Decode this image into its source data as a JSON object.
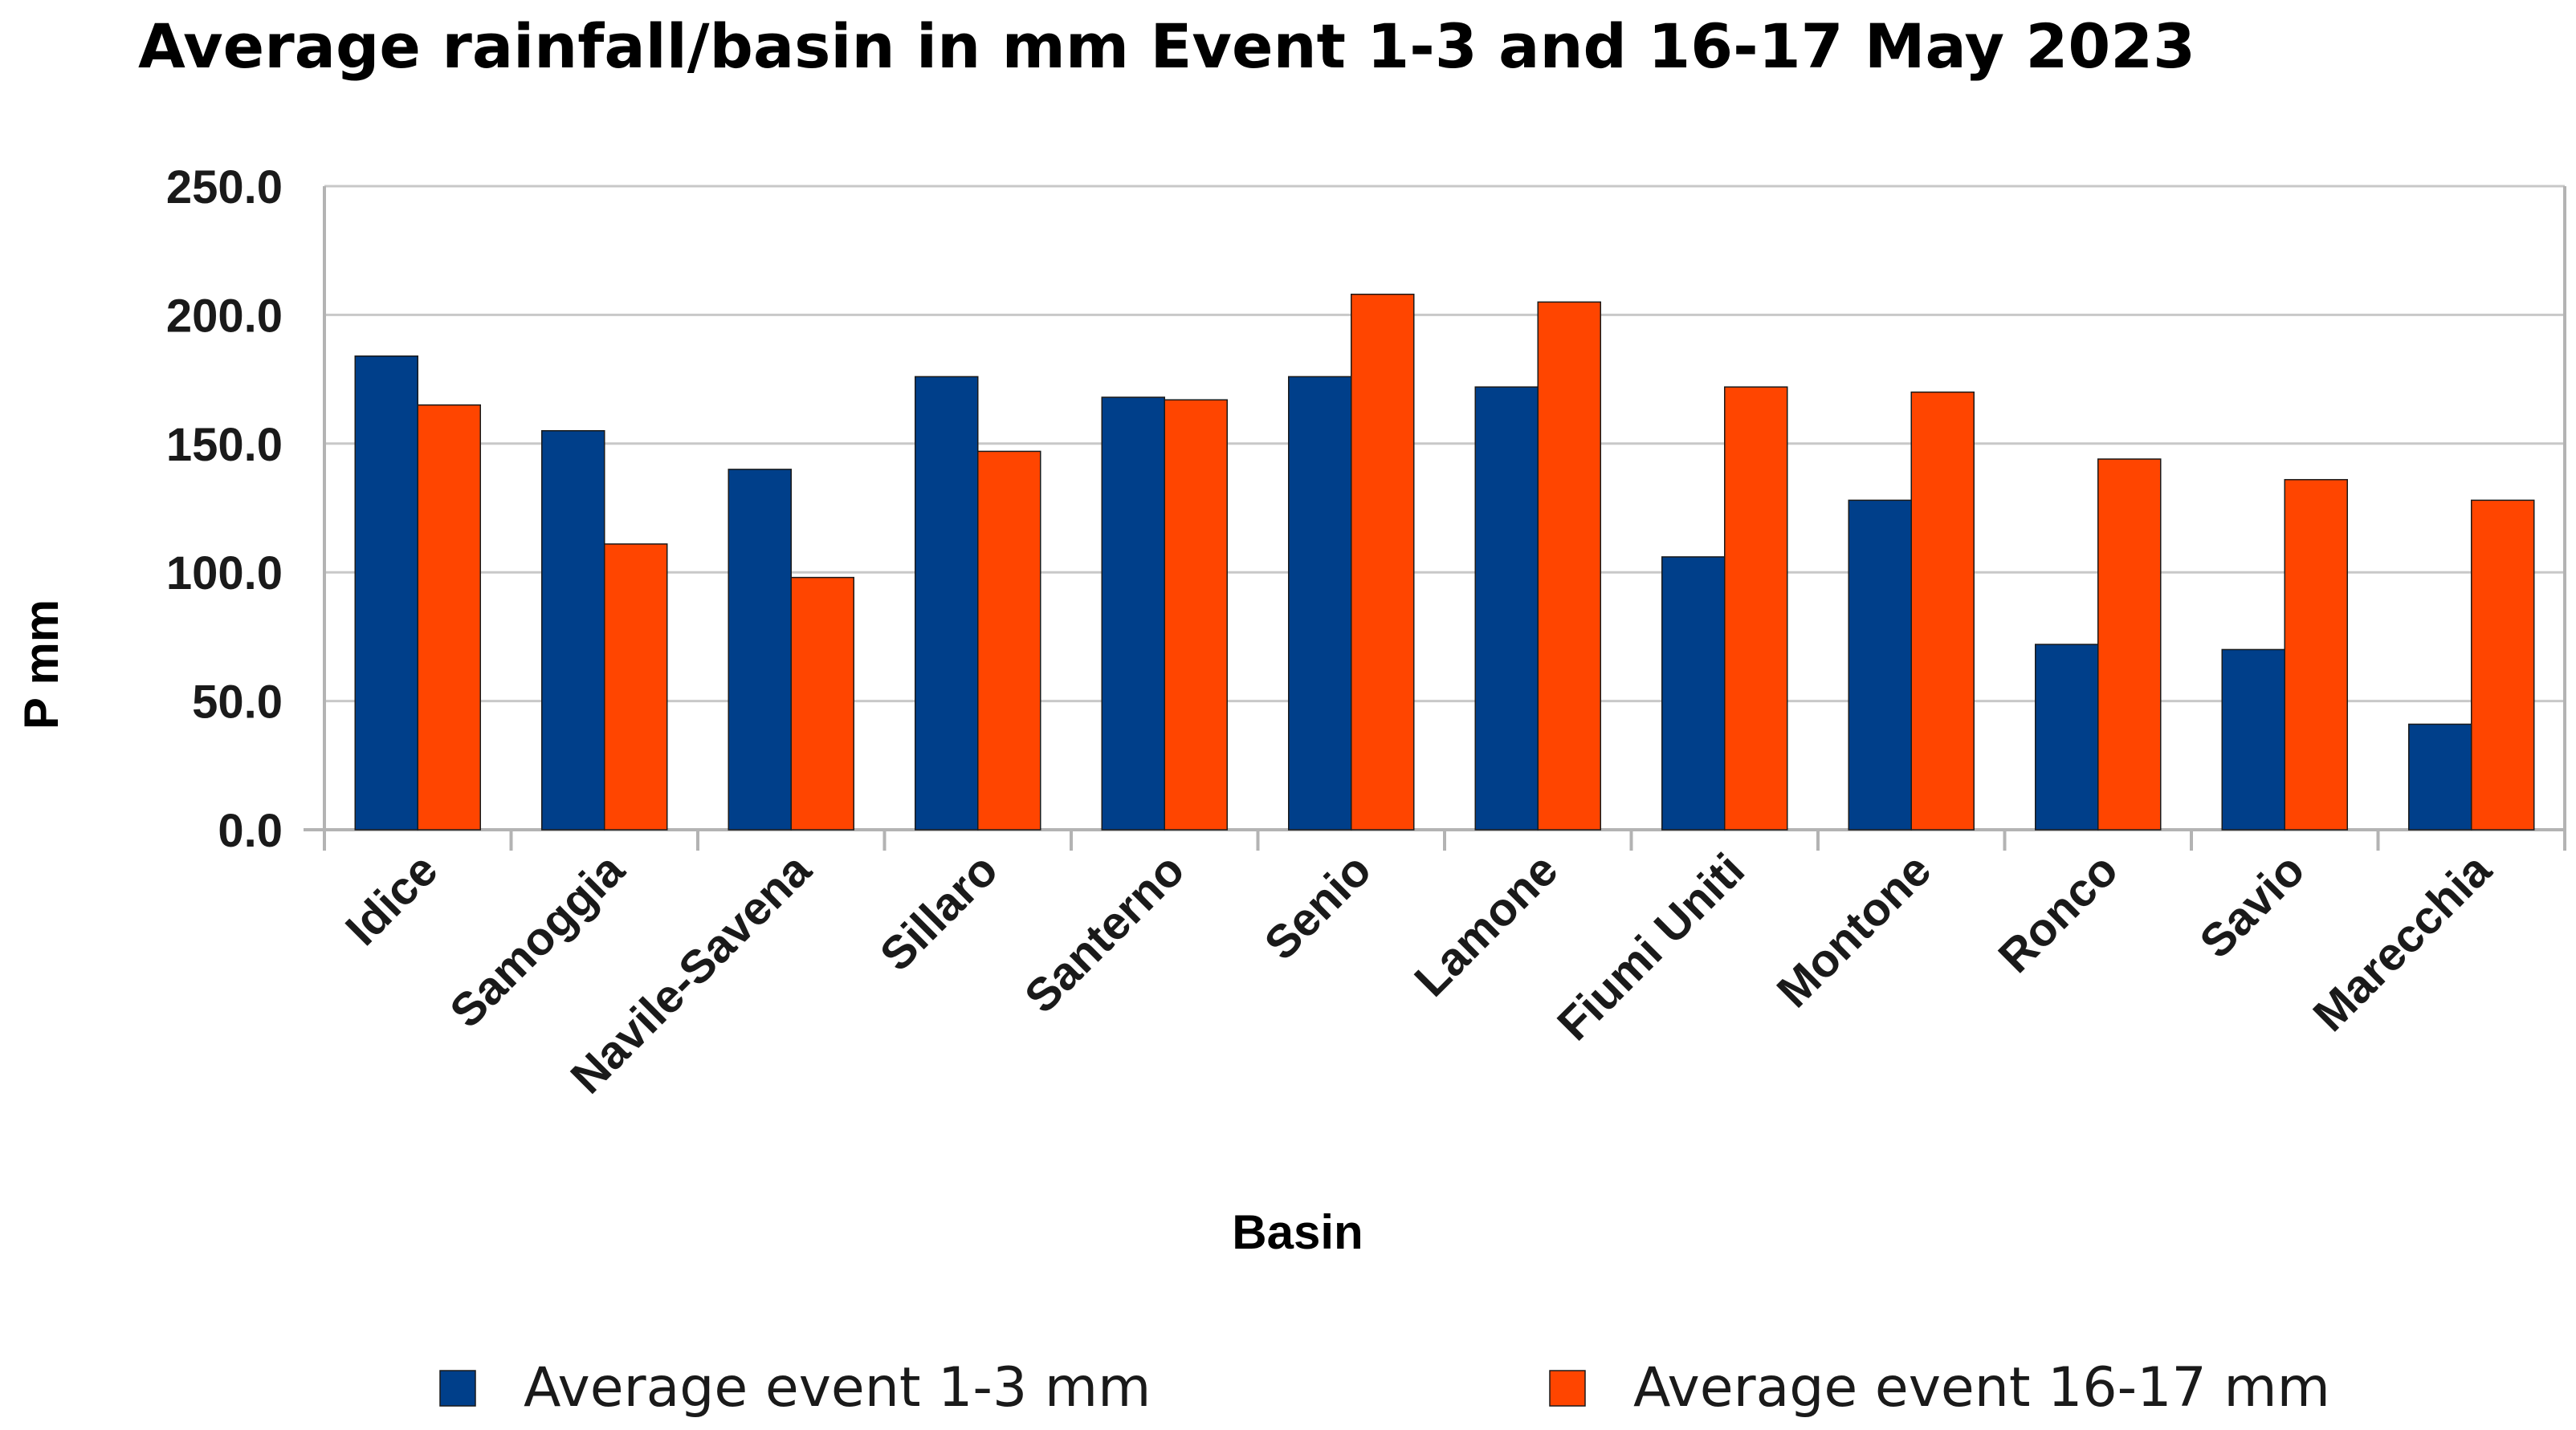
{
  "chart_data": {
    "type": "bar",
    "title": "Average rainfall/basin in mm Event 1-3 and 16-17 May 2023",
    "xlabel": "Basin",
    "ylabel": "P mm",
    "ylim": [
      0,
      250
    ],
    "yticks": [
      "0.0",
      "50.0",
      "100.0",
      "150.0",
      "200.0",
      "250.0"
    ],
    "ytick_values": [
      0,
      50,
      100,
      150,
      200,
      250
    ],
    "grid": true,
    "legend_position": "bottom",
    "categories": [
      "Idice",
      "Samoggia",
      "Navile-Savena",
      "Sillaro",
      "Santerno",
      "Senio",
      "Lamone",
      "Fiumi Uniti",
      "Montone",
      "Ronco",
      "Savio",
      "Marecchia"
    ],
    "series": [
      {
        "name": "Average event 1-3 mm",
        "color": "#003f8a",
        "values": [
          184,
          155,
          140,
          176,
          168,
          176,
          172,
          106,
          128,
          72,
          70,
          41
        ]
      },
      {
        "name": "Average event 16-17 mm",
        "color": "#ff4500",
        "values": [
          165,
          111,
          98,
          147,
          167,
          208,
          205,
          172,
          170,
          144,
          136,
          128
        ]
      }
    ]
  }
}
